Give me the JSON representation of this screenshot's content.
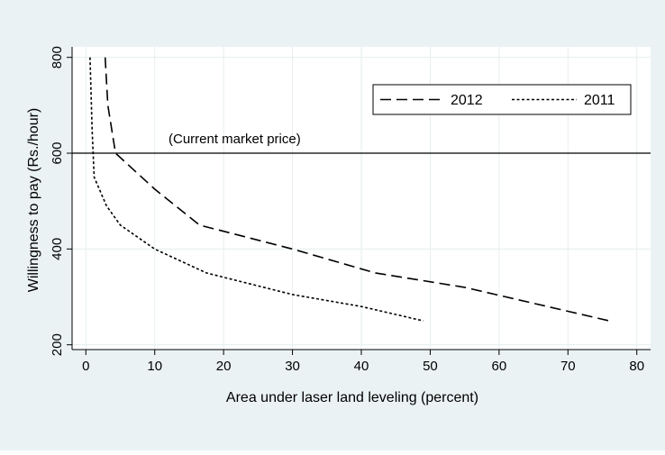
{
  "chart_data": {
    "type": "line",
    "title": "",
    "xlabel": "Area under laser land leveling (percent)",
    "ylabel": "Willingness to pay (Rs./hour)",
    "xlim": [
      -2,
      82
    ],
    "ylim": [
      190,
      822
    ],
    "xticks": [
      0,
      10,
      20,
      30,
      40,
      50,
      60,
      70,
      80
    ],
    "yticks": [
      200,
      400,
      600,
      800
    ],
    "grid": "vertical and horizontal gridlines at major ticks",
    "legend_position": "top-right",
    "series": [
      {
        "name": "2012",
        "dash": "long-dash",
        "color": "#000000",
        "points": [
          [
            2.8,
            800
          ],
          [
            3.2,
            700
          ],
          [
            4.3,
            600
          ],
          [
            10,
            525
          ],
          [
            16.5,
            450
          ],
          [
            30,
            400
          ],
          [
            42,
            350
          ],
          [
            55,
            320
          ],
          [
            76,
            250
          ]
        ]
      },
      {
        "name": "2011",
        "dash": "short-dash",
        "color": "#000000",
        "points": [
          [
            0.6,
            800
          ],
          [
            0.9,
            650
          ],
          [
            1.2,
            550
          ],
          [
            3,
            490
          ],
          [
            5,
            450
          ],
          [
            10,
            400
          ],
          [
            17.5,
            350
          ],
          [
            30,
            305
          ],
          [
            40,
            280
          ],
          [
            49,
            250
          ]
        ]
      }
    ],
    "reference_line": {
      "y": 600,
      "label": "(Current market price)"
    }
  }
}
